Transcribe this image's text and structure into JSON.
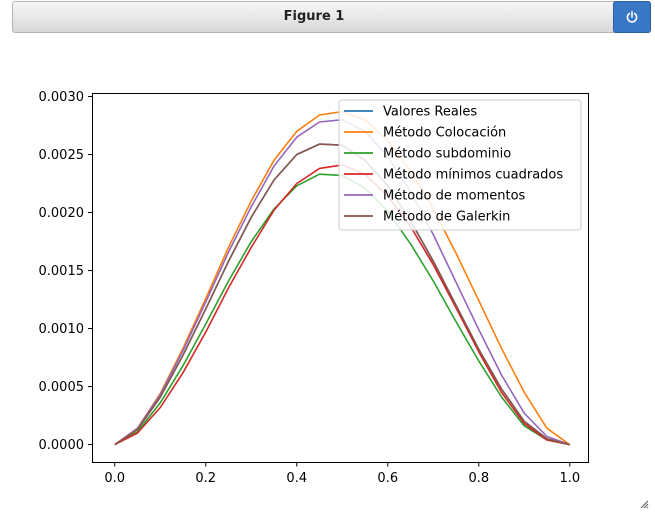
{
  "window": {
    "title": "Figure 1",
    "power_icon": "power-icon"
  },
  "chart_data": {
    "type": "line",
    "title": "",
    "xlabel": "",
    "ylabel": "",
    "xlim": [
      -0.05,
      1.04
    ],
    "ylim": [
      -0.00015,
      0.00303
    ],
    "x_ticks": [
      0.0,
      0.2,
      0.4,
      0.6,
      0.8,
      1.0
    ],
    "x_tick_labels": [
      "0.0",
      "0.2",
      "0.4",
      "0.6",
      "0.8",
      "1.0"
    ],
    "y_ticks": [
      0.0,
      0.0005,
      0.001,
      0.0015,
      0.002,
      0.0025,
      0.003
    ],
    "y_tick_labels": [
      "0.0000",
      "0.0005",
      "0.0010",
      "0.0015",
      "0.0020",
      "0.0025",
      "0.0030"
    ],
    "grid": false,
    "legend_position": "top-right",
    "x": [
      0.0,
      0.05,
      0.1,
      0.15,
      0.2,
      0.25,
      0.3,
      0.35,
      0.4,
      0.45,
      0.5,
      0.55,
      0.6,
      0.65,
      0.7,
      0.75,
      0.8,
      0.85,
      0.9,
      0.95,
      1.0
    ],
    "series": [
      {
        "name": "Valores Reales",
        "color": "#1f77b4",
        "values": [
          0.0,
          0.00013,
          0.00041,
          0.00077,
          0.00117,
          0.00158,
          0.00196,
          0.00228,
          0.0025,
          0.00259,
          0.00258,
          0.00245,
          0.00223,
          0.00193,
          0.00158,
          0.0012,
          0.00082,
          0.00048,
          0.0002,
          5e-05,
          0.0
        ]
      },
      {
        "name": "Método Colocación",
        "color": "#ff7f0e",
        "values": [
          0.0,
          0.00014,
          0.00044,
          0.00083,
          0.00126,
          0.0017,
          0.0021,
          0.00245,
          0.0027,
          0.00284,
          0.00287,
          0.0028,
          0.00262,
          0.00236,
          0.00203,
          0.00165,
          0.00124,
          0.00083,
          0.00045,
          0.00014,
          0.0
        ]
      },
      {
        "name": "Método subdominio",
        "color": "#2ca02c",
        "values": [
          0.0,
          0.00011,
          0.00036,
          0.00068,
          0.00104,
          0.00141,
          0.00175,
          0.00203,
          0.00223,
          0.00233,
          0.00232,
          0.00221,
          0.00201,
          0.00173,
          0.00141,
          0.00106,
          0.00072,
          0.00041,
          0.00016,
          4e-05,
          0.0
        ]
      },
      {
        "name": "Método mínimos cuadrados",
        "color": "#d62728",
        "values": [
          0.0,
          0.0001,
          0.00032,
          0.00062,
          0.00097,
          0.00135,
          0.0017,
          0.00202,
          0.00225,
          0.00238,
          0.00241,
          0.00233,
          0.00214,
          0.00188,
          0.00155,
          0.00118,
          0.0008,
          0.00045,
          0.00018,
          4e-05,
          0.0
        ]
      },
      {
        "name": "Método de momentos",
        "color": "#9467bd",
        "values": [
          0.0,
          0.00014,
          0.00043,
          0.00081,
          0.00123,
          0.00166,
          0.00205,
          0.0024,
          0.00265,
          0.00278,
          0.0028,
          0.0027,
          0.00248,
          0.00218,
          0.00181,
          0.0014,
          0.00099,
          0.0006,
          0.00027,
          7e-05,
          0.0
        ]
      },
      {
        "name": "Método de Galerkin",
        "color": "#8c564b",
        "values": [
          0.0,
          0.00013,
          0.00041,
          0.00077,
          0.00117,
          0.00158,
          0.00196,
          0.00228,
          0.0025,
          0.00259,
          0.00258,
          0.00245,
          0.00223,
          0.00193,
          0.00158,
          0.0012,
          0.00082,
          0.00048,
          0.0002,
          5e-05,
          0.0
        ]
      }
    ]
  }
}
